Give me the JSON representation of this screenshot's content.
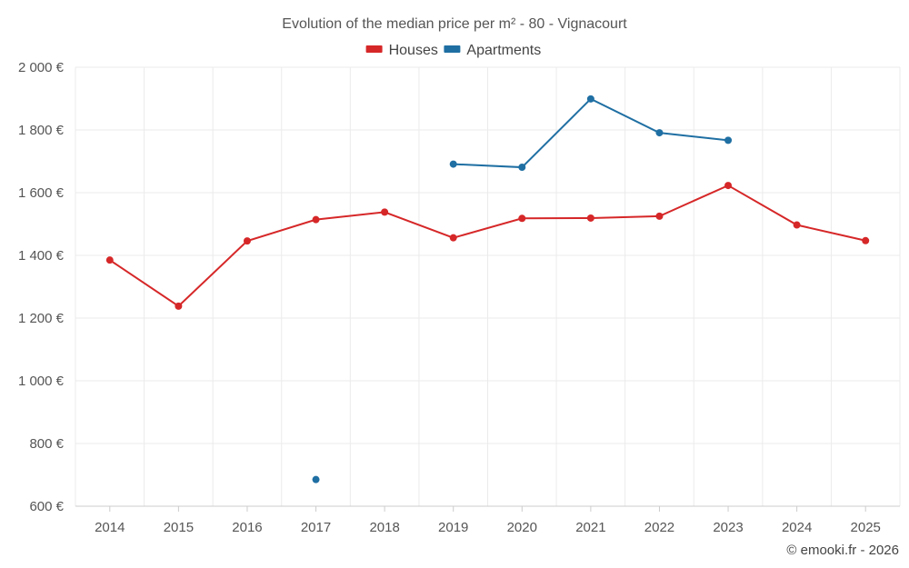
{
  "chart_data": {
    "type": "line",
    "title": "Evolution of the median price per m² - 80 - Vignacourt",
    "categories": [
      "2014",
      "2015",
      "2016",
      "2017",
      "2018",
      "2019",
      "2020",
      "2021",
      "2022",
      "2023",
      "2024",
      "2025"
    ],
    "series": [
      {
        "name": "Houses",
        "color": "#d62728",
        "values": [
          1385,
          1238,
          1446,
          1514,
          1538,
          1456,
          1518,
          1519,
          1525,
          1623,
          1497,
          1447
        ]
      },
      {
        "name": "Apartments",
        "color": "#1f6fa3",
        "values": [
          null,
          null,
          null,
          685,
          null,
          1691,
          1681,
          1899,
          1791,
          1767,
          null,
          null
        ]
      }
    ],
    "ylim": [
      600,
      2000
    ],
    "yticks": [
      600,
      800,
      1000,
      1200,
      1400,
      1600,
      1800,
      2000
    ],
    "ytick_labels": [
      "600 €",
      "800 €",
      "1 000 €",
      "1 200 €",
      "1 400 €",
      "1 600 €",
      "1 800 €",
      "2 000 €"
    ],
    "grid": true,
    "legend": "top-center"
  },
  "credit": "© emooki.fr - 2026"
}
